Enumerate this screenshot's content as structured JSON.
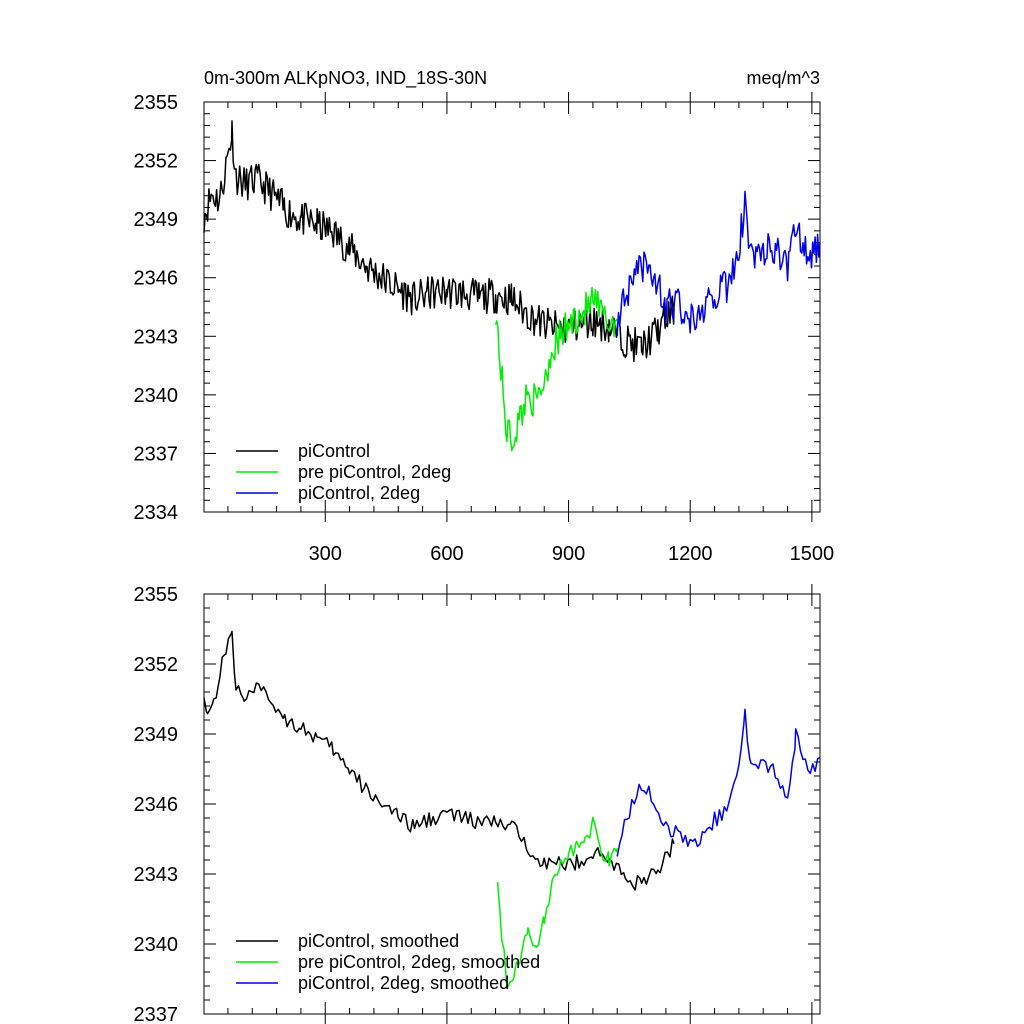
{
  "chart_data": [
    {
      "type": "line",
      "title_left": "0m-300m ALKpNO3, IND_18S-30N",
      "title_right": "meq/m^3",
      "xlim": [
        1,
        1520
      ],
      "ylim": [
        2334,
        2355
      ],
      "x_ticks": [
        300,
        600,
        900,
        1200,
        1500
      ],
      "x_tick_labels": [
        "300",
        "600",
        "900",
        "1200",
        "1500"
      ],
      "y_ticks": [
        2334,
        2337,
        2340,
        2343,
        2346,
        2349,
        2352,
        2355
      ],
      "y_tick_labels": [
        "2334",
        "2337",
        "2340",
        "2343",
        "2346",
        "2349",
        "2352",
        "2355"
      ],
      "series": [
        {
          "name": "piControl",
          "color": "#000000",
          "x": [
            1,
            20,
            40,
            60,
            70,
            80,
            100,
            130,
            160,
            200,
            240,
            280,
            320,
            360,
            400,
            440,
            480,
            520,
            560,
            600,
            640,
            680,
            720,
            760,
            800,
            840,
            880,
            920,
            960,
            1000,
            1040,
            1080,
            1120,
            1160
          ],
          "y": [
            2349.2,
            2350.3,
            2350.0,
            2352.3,
            2353.5,
            2351.2,
            2350.8,
            2351.0,
            2350.5,
            2349.5,
            2349.0,
            2348.7,
            2348.3,
            2347.5,
            2346.6,
            2346.0,
            2345.4,
            2344.9,
            2345.2,
            2345.3,
            2345.2,
            2345.0,
            2345.1,
            2344.9,
            2344.1,
            2343.6,
            2343.4,
            2343.5,
            2343.8,
            2343.5,
            2342.8,
            2342.4,
            2343.3,
            2344.4
          ]
        },
        {
          "name": "pre piControl, 2deg",
          "color": "#00ee00",
          "x": [
            720,
            730,
            745,
            760,
            780,
            800,
            820,
            840,
            860,
            880,
            900,
            920,
            940,
            960,
            980,
            1000,
            1020
          ],
          "y": [
            2344.5,
            2342.0,
            2338.5,
            2337.6,
            2338.8,
            2340.2,
            2339.5,
            2340.8,
            2342.4,
            2343.0,
            2343.5,
            2344.0,
            2344.3,
            2344.8,
            2344.2,
            2343.6,
            2343.9
          ]
        },
        {
          "name": "piControl, 2deg",
          "color": "#0000ee",
          "x": [
            1020,
            1050,
            1080,
            1110,
            1140,
            1170,
            1200,
            1230,
            1260,
            1290,
            1320,
            1335,
            1350,
            1380,
            1410,
            1440,
            1460,
            1490,
            1520
          ],
          "y": [
            2343.9,
            2345.2,
            2346.5,
            2346.1,
            2344.5,
            2344.6,
            2344.0,
            2344.5,
            2345.0,
            2345.6,
            2347.4,
            2350.0,
            2347.3,
            2347.5,
            2347.3,
            2346.6,
            2348.6,
            2347.0,
            2347.8
          ]
        }
      ]
    },
    {
      "type": "line",
      "xlim": [
        1,
        1520
      ],
      "ylim": [
        2337,
        2355
      ],
      "x_ticks": [
        300,
        600,
        900,
        1200,
        1500
      ],
      "y_ticks": [
        2337,
        2340,
        2343,
        2346,
        2349,
        2352,
        2355
      ],
      "y_tick_labels": [
        "2337",
        "2340",
        "2343",
        "2346",
        "2349",
        "2352",
        "2355"
      ],
      "series": [
        {
          "name": "piControl, smoothed",
          "color": "#000000",
          "x": [
            1,
            10,
            25,
            40,
            55,
            70,
            80,
            100,
            130,
            160,
            200,
            240,
            280,
            320,
            360,
            400,
            440,
            480,
            520,
            560,
            600,
            640,
            680,
            720,
            760,
            800,
            840,
            880,
            920,
            960,
            1000,
            1040,
            1080,
            1120,
            1160
          ],
          "y": [
            2350.9,
            2349.8,
            2350.4,
            2351.5,
            2352.7,
            2353.2,
            2350.9,
            2350.7,
            2350.9,
            2350.6,
            2349.7,
            2349.3,
            2348.8,
            2348.3,
            2347.4,
            2346.6,
            2346.1,
            2345.4,
            2345.0,
            2345.4,
            2345.6,
            2345.4,
            2345.2,
            2345.2,
            2345.0,
            2344.2,
            2343.5,
            2343.4,
            2343.5,
            2343.9,
            2343.6,
            2342.9,
            2342.5,
            2343.2,
            2344.3
          ]
        },
        {
          "name": "pre piControl, 2deg, smoothed",
          "color": "#00ee00",
          "x": [
            725,
            735,
            750,
            765,
            780,
            800,
            820,
            840,
            860,
            880,
            900,
            920,
            940,
            960,
            980,
            1000,
            1020
          ],
          "y": [
            2343.0,
            2340.5,
            2338.2,
            2338.6,
            2339.4,
            2340.6,
            2340.0,
            2341.0,
            2342.5,
            2343.3,
            2343.8,
            2344.2,
            2344.4,
            2345.1,
            2344.0,
            2343.6,
            2344.1
          ]
        },
        {
          "name": "piControl, 2deg, smoothed",
          "color": "#0000ee",
          "x": [
            1020,
            1050,
            1080,
            1110,
            1140,
            1170,
            1200,
            1230,
            1260,
            1290,
            1320,
            1335,
            1350,
            1380,
            1410,
            1440,
            1460,
            1490,
            1520
          ],
          "y": [
            2344.1,
            2345.6,
            2346.8,
            2346.3,
            2344.9,
            2344.8,
            2344.3,
            2344.6,
            2345.3,
            2345.8,
            2347.8,
            2349.9,
            2347.6,
            2347.7,
            2347.3,
            2346.4,
            2348.9,
            2347.3,
            2348.0
          ]
        }
      ]
    }
  ]
}
